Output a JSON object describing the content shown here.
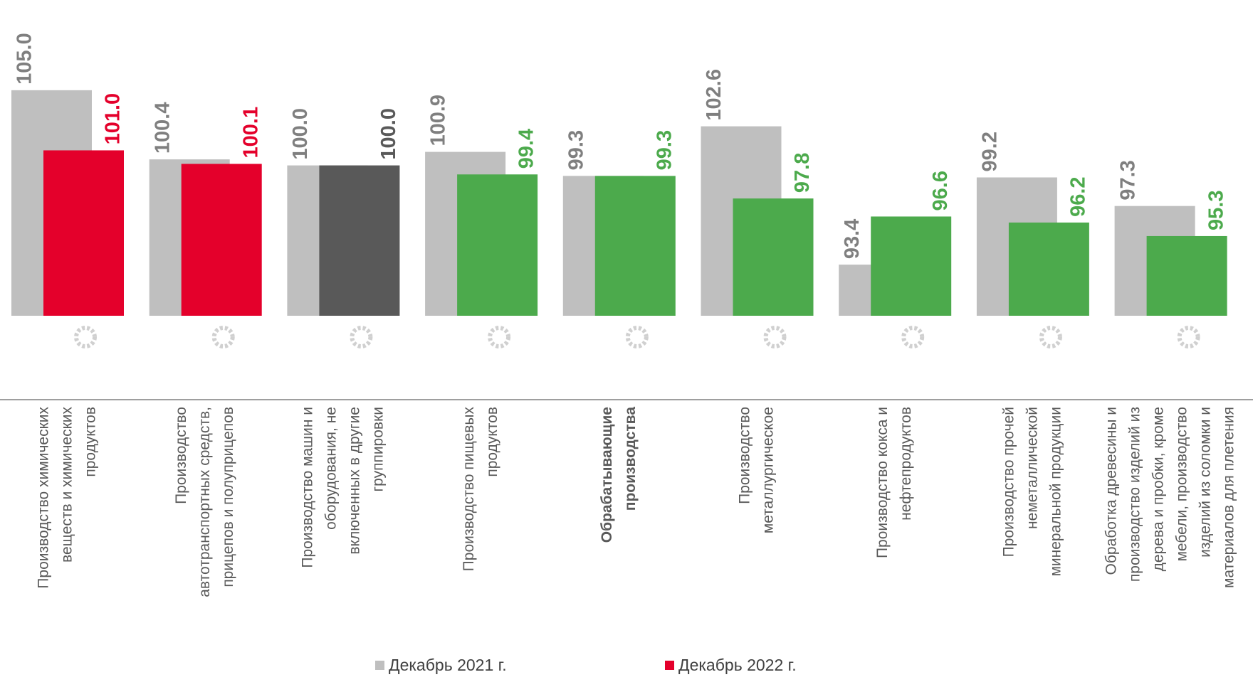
{
  "chart_data": {
    "type": "bar",
    "categories": [
      [
        "Производство химических",
        "веществ и химических",
        "продуктов"
      ],
      [
        "Производство",
        "автотранспортных средств,",
        "прицепов и полуприцепов"
      ],
      [
        "Производство машин и",
        "оборудования, не",
        "включенных в другие",
        "группировки"
      ],
      [
        "Производство пищевых",
        "продуктов"
      ],
      [
        "Обрабатывающие",
        "производства"
      ],
      [
        "Производство",
        "металлургическое"
      ],
      [
        "Производство кокса и",
        "нефтепродуктов"
      ],
      [
        "Производство прочей",
        "неметаллической",
        "минеральной продукции"
      ],
      [
        "Обработка древесины и",
        "производство изделий  из",
        "дерева и пробки, кроме",
        "мебели, производство",
        "изделий из соломки и",
        "материалов для плетения"
      ]
    ],
    "emphasis": [
      false,
      false,
      false,
      false,
      true,
      false,
      false,
      false,
      false
    ],
    "series": [
      {
        "name": "Декабрь 2021 г.",
        "color": "#bfbfbf",
        "label_color": "#7f7f7f",
        "values": [
          105.0,
          100.4,
          100.0,
          100.9,
          99.3,
          102.6,
          93.4,
          99.2,
          97.3
        ],
        "value_labels": [
          "105.0",
          "100.4",
          "100.0",
          "100.9",
          "99.3",
          "102.6",
          "93.4",
          "99.2",
          "97.3"
        ]
      },
      {
        "name": "Декабрь 2022 г.",
        "color": "#e4002b",
        "colors": [
          "#e4002b",
          "#e4002b",
          "#595959",
          "#4caa4c",
          "#4caa4c",
          "#4caa4c",
          "#4caa4c",
          "#4caa4c",
          "#4caa4c"
        ],
        "values": [
          101.0,
          100.1,
          100.0,
          99.4,
          99.3,
          97.8,
          96.6,
          96.2,
          95.3
        ],
        "value_labels": [
          "101.0",
          "100.1",
          "100.0",
          "99.4",
          "99.3",
          "97.8",
          "96.6",
          "96.2",
          "95.3"
        ]
      }
    ],
    "ylim": [
      90,
      111
    ],
    "grid": false
  }
}
